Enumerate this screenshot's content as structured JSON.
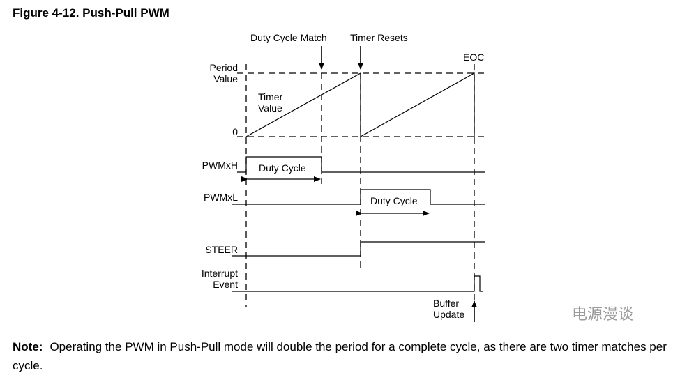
{
  "figure": {
    "title": "Figure 4-12.  Push-Pull PWM",
    "markers": {
      "duty_cycle_match": "Duty Cycle Match",
      "timer_resets": "Timer Resets",
      "eoc": "EOC",
      "buffer_update_line1": "Buffer",
      "buffer_update_line2": "Update"
    },
    "timer_axis": {
      "period_line1": "Period",
      "period_line2": "Value",
      "zero": "0",
      "timer_value_line1": "Timer",
      "timer_value_line2": "Value"
    },
    "signals": {
      "pwmxh": "PWMxH",
      "pwmxl": "PWMxL",
      "steer": "STEER",
      "interrupt_line1": "Interrupt",
      "interrupt_line2": "Event"
    },
    "duty_cycle_label_h": "Duty Cycle",
    "duty_cycle_label_l": "Duty Cycle"
  },
  "note": {
    "label": "Note:",
    "text": "Operating the PWM in Push-Pull mode will double the period for a complete cycle, as there are two timer matches per cycle."
  },
  "watermark": "电源漫谈"
}
